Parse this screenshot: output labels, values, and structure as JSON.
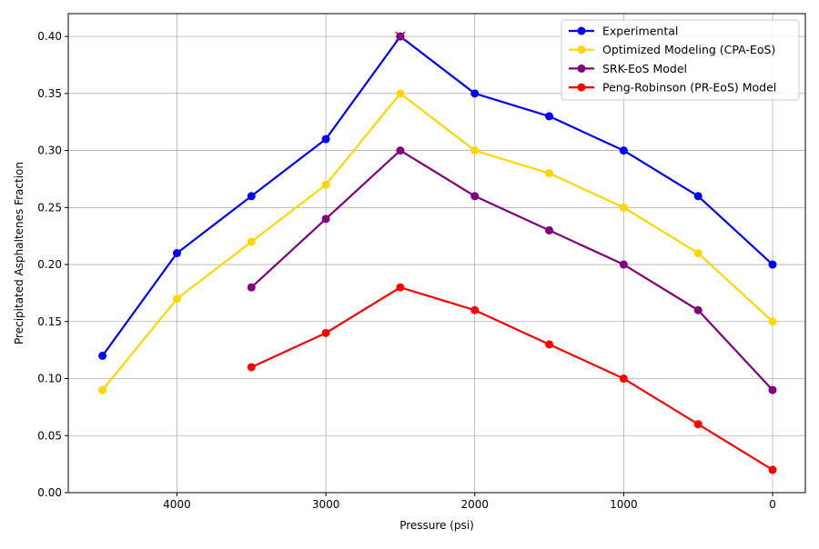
{
  "chart_data": {
    "type": "line",
    "title": "",
    "xlabel": "Pressure (psi)",
    "ylabel": "Precipitated Asphaltenes Fraction",
    "xlim": [
      4730,
      -220
    ],
    "ylim": [
      0,
      0.42
    ],
    "x_inverted": true,
    "xticks": [
      4000,
      3000,
      2000,
      1000,
      0
    ],
    "xtick_labels": [
      "4000",
      "3000",
      "2000",
      "1000",
      "0"
    ],
    "yticks": [
      0,
      0.05,
      0.1,
      0.15,
      0.2,
      0.25,
      0.3,
      0.35,
      0.4
    ],
    "ytick_labels": [
      "0.00",
      "0.05",
      "0.10",
      "0.15",
      "0.20",
      "0.25",
      "0.30",
      "0.35",
      "0.40"
    ],
    "grid": true,
    "legend_position": "top-right",
    "series": [
      {
        "name": "Experimental",
        "color": "#0000ff",
        "x": [
          4500,
          4000,
          3500,
          3000,
          2500,
          2000,
          1500,
          1000,
          500,
          0
        ],
        "y": [
          0.12,
          0.21,
          0.26,
          0.31,
          0.4,
          0.35,
          0.33,
          0.3,
          0.26,
          0.2
        ]
      },
      {
        "name": "Optimized Modeling (CPA-EoS)",
        "color": "#ffd700",
        "x": [
          4500,
          4000,
          3500,
          3000,
          2500,
          2000,
          1500,
          1000,
          500,
          0
        ],
        "y": [
          0.09,
          0.17,
          0.22,
          0.27,
          0.35,
          0.3,
          0.28,
          0.25,
          0.21,
          0.15
        ]
      },
      {
        "name": "SRK-EoS Model",
        "color": "#800080",
        "x": [
          3500,
          3000,
          2500,
          2000,
          1500,
          1000,
          500,
          0
        ],
        "y": [
          0.18,
          0.24,
          0.3,
          0.26,
          0.23,
          0.2,
          0.16,
          0.09
        ]
      },
      {
        "name": "Peng-Robinson (PR-EoS) Model",
        "color": "#ff0000",
        "x": [
          3500,
          3000,
          2500,
          2000,
          1500,
          1000,
          500,
          0
        ],
        "y": [
          0.11,
          0.14,
          0.18,
          0.16,
          0.13,
          0.1,
          0.06,
          0.02
        ]
      }
    ],
    "annotations": [
      {
        "type": "x-marker",
        "x": 2500,
        "y": 0.4,
        "color": "#ff0000"
      }
    ]
  }
}
